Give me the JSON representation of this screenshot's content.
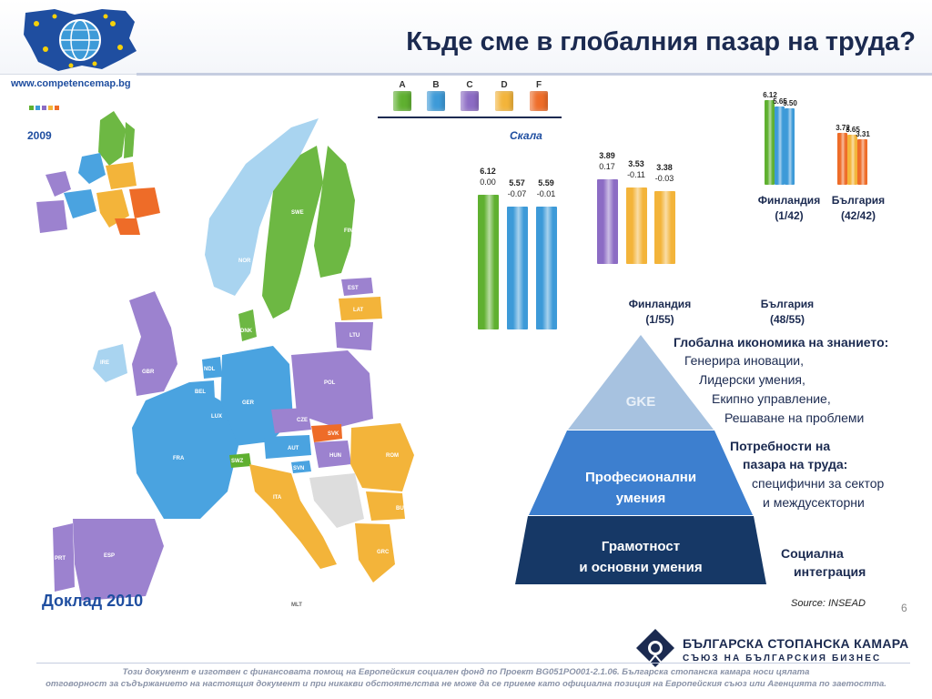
{
  "header": {
    "title": "Къде сме  в глобалния пазар на труда?",
    "url": "www.competencemap.bg"
  },
  "map": {
    "inset_year": "2009",
    "report_label": "Доклад 2010",
    "countries": [
      "SWE",
      "FIN",
      "NOR",
      "EST",
      "LAT",
      "LTU",
      "DNK",
      "IRE",
      "GBR",
      "NDL",
      "BEL",
      "LUX",
      "GER",
      "POL",
      "CZE",
      "SVK",
      "AUT",
      "HUN",
      "ROM",
      "FRA",
      "SWZ",
      "SVN",
      "ITA",
      "BUL",
      "GRC",
      "PRT",
      "ESP",
      "MLT"
    ]
  },
  "legend": {
    "letters": [
      "A",
      "B",
      "C",
      "D",
      "F"
    ],
    "colors": [
      "#5fb030",
      "#3d9ad8",
      "#8c6cc4",
      "#f3b43a",
      "#ee6c28"
    ],
    "scale_label": "Скала"
  },
  "chart_data": [
    {
      "type": "bar",
      "values": [
        6.12,
        5.57,
        5.59
      ],
      "secondary_values": [
        "0.00",
        "-0.07",
        "-0.01"
      ]
    },
    {
      "type": "bar",
      "values": [
        3.89,
        3.53,
        3.38
      ],
      "secondary_values": [
        "0.17",
        "-0.11",
        "-0.03"
      ]
    },
    {
      "type": "bar",
      "categories": [
        "Финландия",
        "България"
      ],
      "series": [
        {
          "values": [
            6.12,
            3.72
          ]
        },
        {
          "values": [
            5.65,
            3.65
          ]
        },
        {
          "values": [
            5.5,
            3.31
          ]
        }
      ]
    }
  ],
  "captions": {
    "fin_55": [
      "Финландия",
      "(1/55)"
    ],
    "bul_55": [
      "България",
      "(48/55)"
    ],
    "fin_42": [
      "Финландия",
      "(1/42)"
    ],
    "bul_42": [
      "България",
      "(42/42)"
    ]
  },
  "pyramid": {
    "top": "GKE",
    "middle": [
      "Професионални",
      "умения"
    ],
    "bottom": [
      "Грамотност",
      "и основни умения"
    ],
    "top_side": {
      "heading": "Глобална икономика на знанието:",
      "items": [
        "Генерира иновации,",
        "Лидерски умения,",
        "Екипно управление,",
        "Решаване на проблеми"
      ]
    },
    "middle_side": {
      "heading": [
        "Потребности на",
        "пазара на труда:"
      ],
      "items": [
        "специфични за сектор",
        "и междусекторни"
      ]
    },
    "bottom_side": [
      "Социална",
      "интеграция"
    ]
  },
  "source": "Source: INSEAD",
  "page_number": "6",
  "chamber": {
    "name": "БЪЛГАРСКА СТОПАНСКА КАМАРА",
    "subtitle": "СЪЮЗ НА БЪЛГАРСКИЯ БИЗНЕС"
  },
  "footer": {
    "line1": "Този документ е изготвен с финансовата помощ на Европейския социален фонд по Проект BG051PO001-2.1.06. Българска стопанска камара носи цялата",
    "line2": "отговорност за съдържанието на настоящия документ и при никакви обстоятелства не може да се приеме като официална позиция на Европейския съюз или Агенцията по заетостта."
  }
}
